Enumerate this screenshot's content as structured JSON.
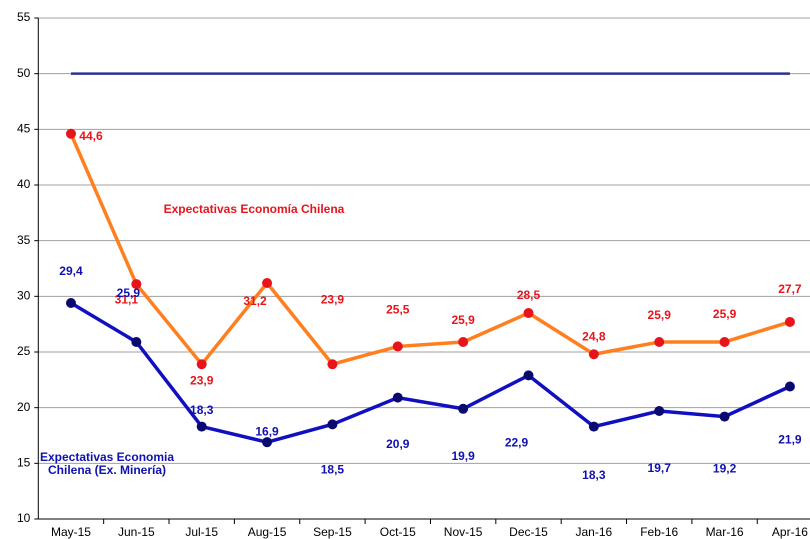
{
  "chart_data": {
    "type": "line",
    "categories": [
      "May-15",
      "Jun-15",
      "Jul-15",
      "Aug-15",
      "Sep-15",
      "Oct-15",
      "Nov-15",
      "Dec-15",
      "Jan-16",
      "Feb-16",
      "Mar-16",
      "Apr-16"
    ],
    "series": [
      {
        "name": "Expectativas Economía Chilena",
        "color": "#ff7f1f",
        "marker_color": "#e8141c",
        "label_color": "#e8141c",
        "values": [
          44.6,
          31.1,
          23.9,
          31.2,
          23.9,
          25.5,
          25.9,
          28.5,
          24.8,
          25.9,
          25.9,
          27.7
        ],
        "value_labels": [
          "44,6",
          "31,1",
          "23,9",
          "31,2",
          "23,9",
          "25,5",
          "25,9",
          "28,5",
          "24,8",
          "25,9",
          "25,9",
          "27,7"
        ]
      },
      {
        "name": "Expectativas Economia Chilena (Ex. Minería)",
        "color": "#1010c0",
        "marker_color": "#0a0a6e",
        "label_color": "#1010b0",
        "values": [
          29.4,
          25.9,
          18.3,
          16.9,
          18.5,
          20.9,
          19.9,
          22.9,
          18.3,
          19.7,
          19.2,
          21.9
        ],
        "value_labels": [
          "29,4",
          "25,9",
          "18,3",
          "16,9",
          "18,5",
          "20,9",
          "19,9",
          "22,9",
          "18,3",
          "19,7",
          "19,2",
          "21,9"
        ]
      },
      {
        "color": "#2e3192",
        "values": [
          50,
          50,
          50,
          50,
          50,
          50,
          50,
          50,
          50,
          50,
          50,
          50
        ]
      }
    ],
    "ylim": [
      10,
      55
    ],
    "yticks": [
      10,
      15,
      20,
      25,
      30,
      35,
      40,
      45,
      50,
      55
    ],
    "grid": true
  }
}
